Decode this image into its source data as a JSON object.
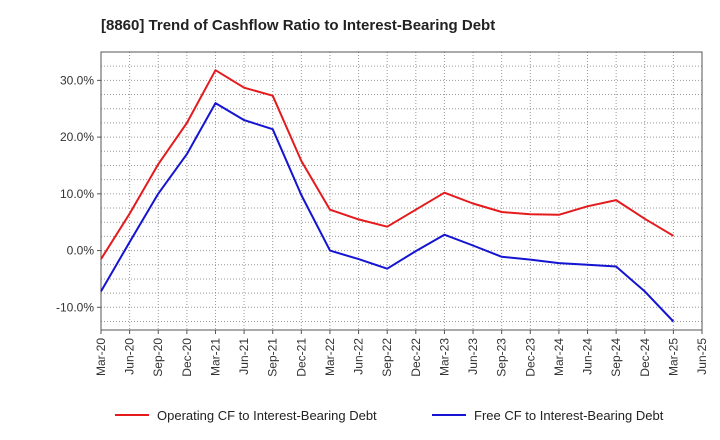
{
  "chart_data": {
    "type": "line",
    "title": "[8860]  Trend of Cashflow Ratio to Interest-Bearing Debt",
    "xlabel": "",
    "ylabel": "",
    "x": [
      "Mar-20",
      "Jun-20",
      "Sep-20",
      "Dec-20",
      "Mar-21",
      "Jun-21",
      "Sep-21",
      "Dec-21",
      "Mar-22",
      "Jun-22",
      "Sep-22",
      "Dec-22",
      "Mar-23",
      "Jun-23",
      "Sep-23",
      "Dec-23",
      "Mar-24",
      "Jun-24",
      "Sep-24",
      "Dec-24",
      "Mar-25",
      "Jun-25"
    ],
    "ylim": [
      -14,
      35
    ],
    "yticks": [
      -10,
      0,
      10,
      20,
      30
    ],
    "ytick_labels": [
      "-10.0%",
      "0.0%",
      "10.0%",
      "20.0%",
      "30.0%"
    ],
    "grid": true,
    "legend_position": "bottom",
    "series": [
      {
        "name": "Operating CF to Interest-Bearing Debt",
        "color": "#e41a1c",
        "values": [
          -1.5,
          6.5,
          15.2,
          22.5,
          31.8,
          28.7,
          27.3,
          15.8,
          7.2,
          5.5,
          4.2,
          7.2,
          10.2,
          8.3,
          6.8,
          6.4,
          6.3,
          7.8,
          8.9,
          5.6,
          2.6,
          null
        ]
      },
      {
        "name": "Free CF to Interest-Bearing Debt",
        "color": "#1414d2",
        "values": [
          -7.2,
          1.5,
          10.0,
          17.0,
          26.0,
          23.0,
          21.4,
          9.8,
          0.0,
          -1.5,
          -3.2,
          -0.1,
          2.8,
          0.9,
          -1.1,
          -1.6,
          -2.2,
          -2.5,
          -2.8,
          -7.2,
          -12.5,
          null
        ]
      }
    ]
  }
}
